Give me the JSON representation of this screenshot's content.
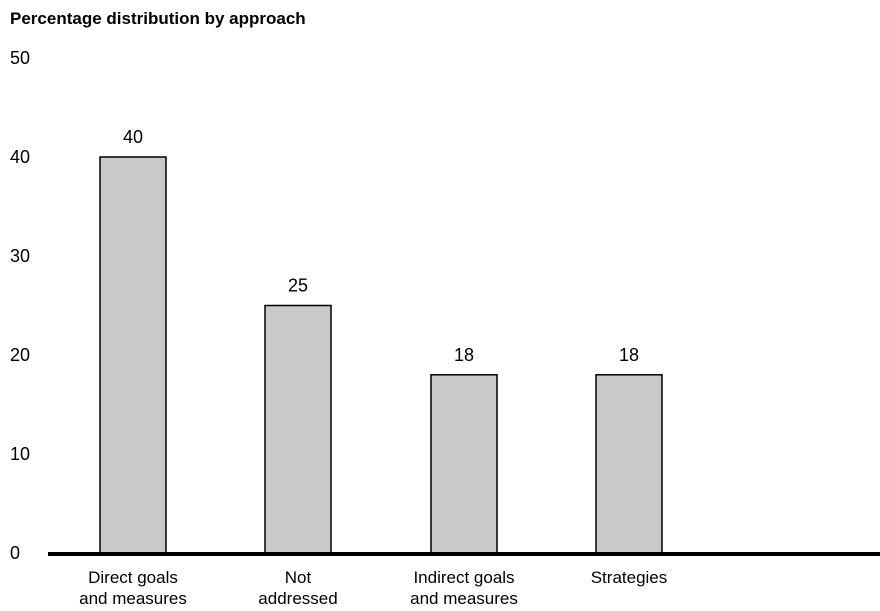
{
  "chart_data": {
    "type": "bar",
    "ylabel": "Percentage distribution by approach",
    "categories": [
      [
        "Direct goals",
        "and measures"
      ],
      [
        "Not",
        "addressed"
      ],
      [
        "Indirect goals",
        "and measures"
      ],
      [
        "Strategies"
      ]
    ],
    "values": [
      40,
      25,
      18,
      18
    ],
    "data_labels": [
      "40",
      "25",
      "18",
      "18"
    ],
    "yticks": [
      "0",
      "10",
      "20",
      "30",
      "40",
      "50"
    ],
    "ylim": [
      0,
      50
    ],
    "grid": false,
    "bar_color": "#c8c9cb",
    "bar_stroke": "#000000",
    "axis_color": "#000000"
  }
}
